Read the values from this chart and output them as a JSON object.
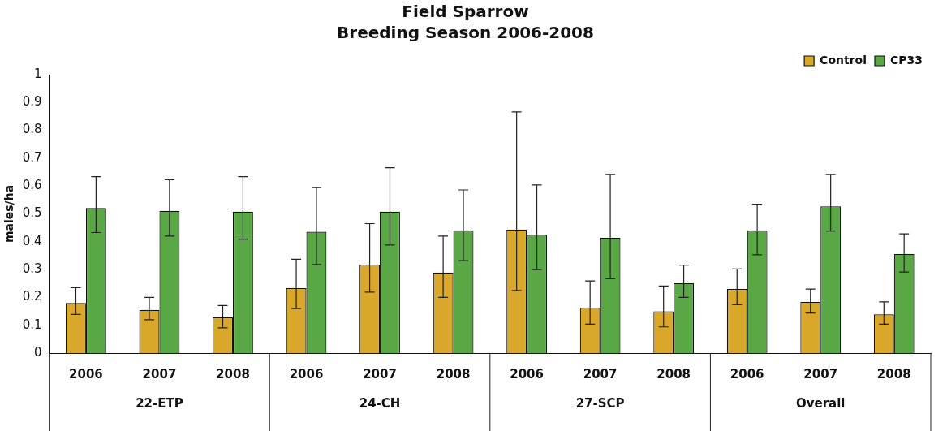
{
  "chart_data": {
    "type": "bar",
    "title": "Field Sparrow",
    "subtitle": "Breeding Season 2006-2008",
    "ylabel": "males/ha",
    "categories": [
      "2006",
      "2007",
      "2008",
      "2006",
      "2007",
      "2008",
      "2006",
      "2007",
      "2008",
      "2006",
      "2007",
      "2008"
    ],
    "annotations": [
      "22-ETP",
      "24-CH",
      "27-SCP",
      "Overall"
    ],
    "series": [
      {
        "name": "Control",
        "color": "#d9a72a",
        "values": [
          0.18,
          0.155,
          0.128,
          0.233,
          0.318,
          0.289,
          0.444,
          0.163,
          0.15,
          0.23,
          0.184,
          0.139
        ],
        "errors": [
          [
            0.139,
            0.235
          ],
          [
            0.12,
            0.2
          ],
          [
            0.091,
            0.171
          ],
          [
            0.16,
            0.337
          ],
          [
            0.219,
            0.465
          ],
          [
            0.2,
            0.42
          ],
          [
            0.225,
            0.866
          ],
          [
            0.104,
            0.259
          ],
          [
            0.094,
            0.241
          ],
          [
            0.174,
            0.302
          ],
          [
            0.144,
            0.23
          ],
          [
            0.104,
            0.184
          ]
        ]
      },
      {
        "name": "CP33",
        "color": "#5aa845",
        "values": [
          0.521,
          0.511,
          0.508,
          0.436,
          0.508,
          0.441,
          0.425,
          0.414,
          0.251,
          0.441,
          0.527,
          0.356
        ],
        "errors": [
          [
            0.433,
            0.634
          ],
          [
            0.42,
            0.623
          ],
          [
            0.409,
            0.634
          ],
          [
            0.318,
            0.594
          ],
          [
            0.388,
            0.666
          ],
          [
            0.332,
            0.586
          ],
          [
            0.3,
            0.604
          ],
          [
            0.267,
            0.642
          ],
          [
            0.2,
            0.316
          ],
          [
            0.353,
            0.535
          ],
          [
            0.438,
            0.642
          ],
          [
            0.291,
            0.428
          ]
        ]
      }
    ],
    "ylim": [
      0,
      1
    ],
    "yticks": [
      0,
      0.1,
      0.2,
      0.3,
      0.4,
      0.5,
      0.6,
      0.7,
      0.8,
      0.9,
      1
    ],
    "grid": false,
    "legend": "top right"
  }
}
